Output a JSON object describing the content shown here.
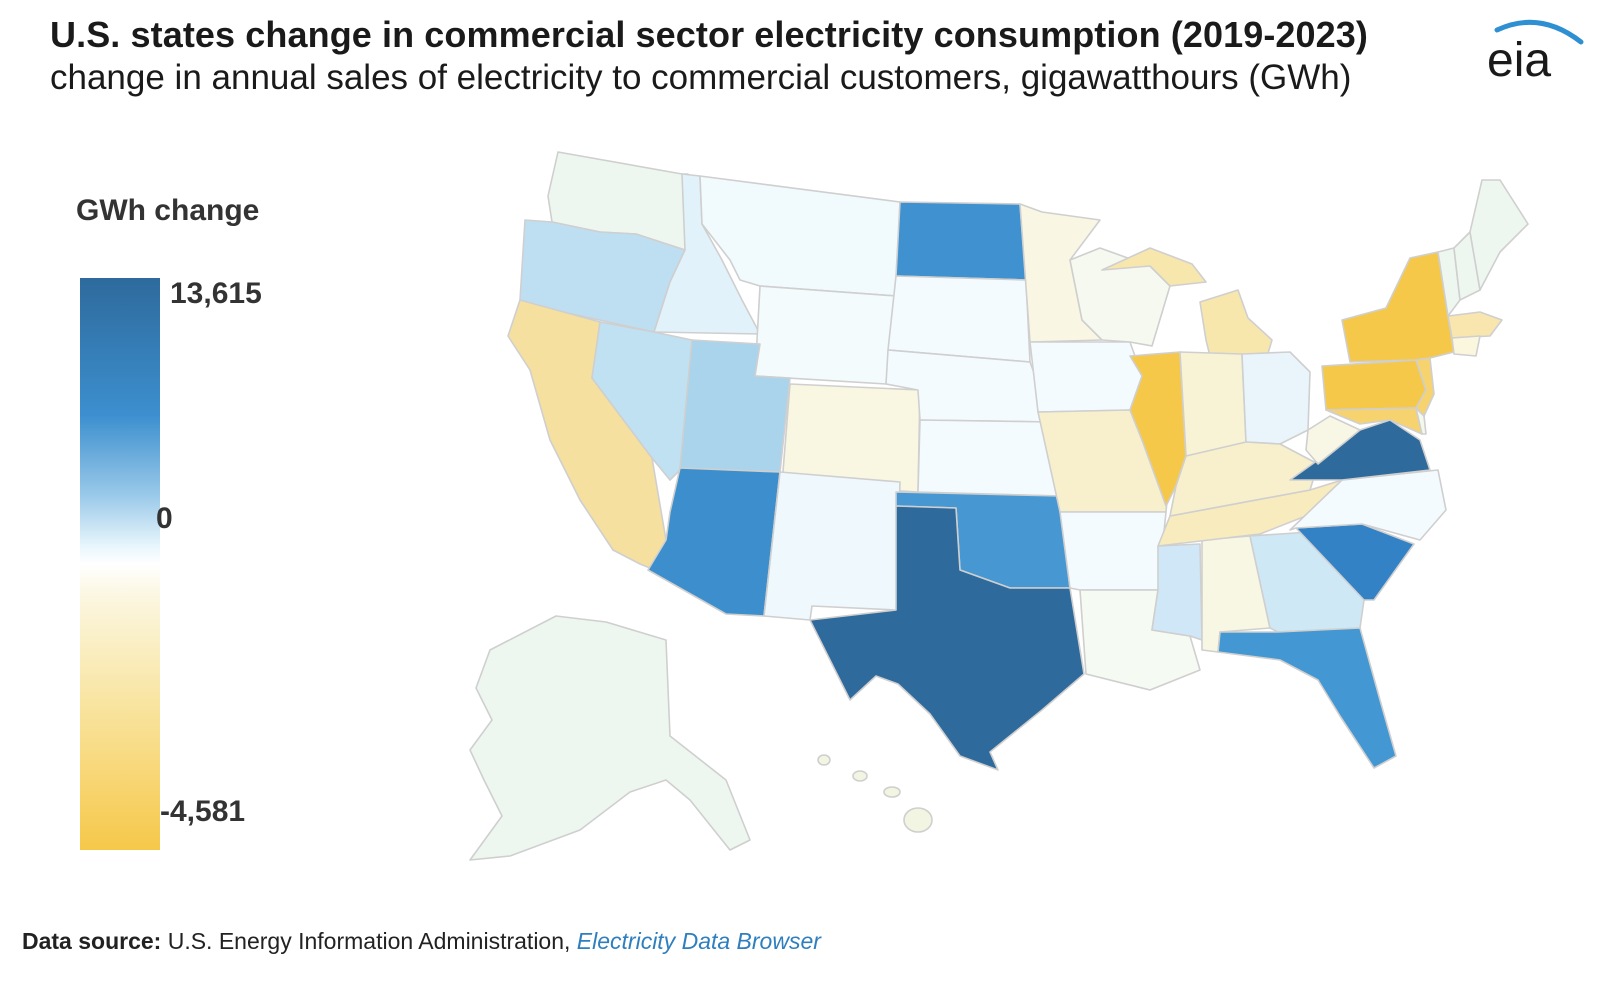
{
  "title": "U.S. states change in commercial sector electricity consumption (2019-2023)",
  "subtitle": "change in annual sales of electricity to commercial customers, gigawatthours (GWh)",
  "logo_text": "eia",
  "legend": {
    "title": "GWh change",
    "max_label": "13,615",
    "zero_label": "0",
    "min_label": "-4,581",
    "max": 13615,
    "min": -4581,
    "colors": {
      "max": "#2e6a9c",
      "high": "#3c8fcf",
      "zero": "#ffffff",
      "low": "#f9e7a9",
      "min": "#f6c84a"
    }
  },
  "source": {
    "label": "Data source:",
    "text": "U.S. Energy Information Administration,",
    "link_text": "Electricity Data Browser"
  }
}
